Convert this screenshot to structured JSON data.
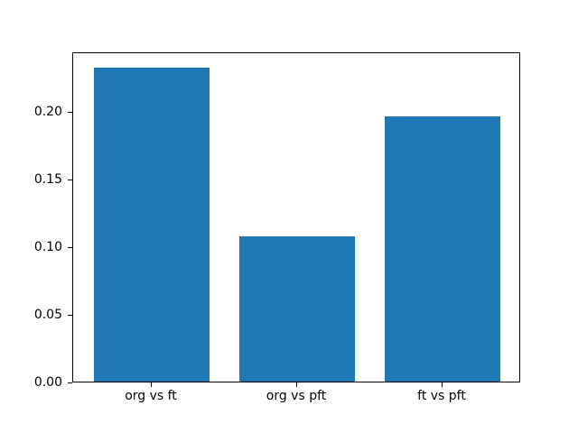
{
  "figure": {
    "background": "#ffffff"
  },
  "chart_data": {
    "type": "bar",
    "title": "",
    "xlabel": "",
    "ylabel": "",
    "categories": [
      "org vs ft",
      "org vs pft",
      "ft vs pft"
    ],
    "values": [
      0.232,
      0.107,
      0.196
    ],
    "bar_color": "#1f77b4",
    "bar_width": 0.8,
    "xlim": [
      -0.54,
      2.54
    ],
    "ylim": [
      0,
      0.2437
    ],
    "yticks": [
      0.0,
      0.05,
      0.1,
      0.15,
      0.2
    ],
    "ytick_labels": [
      "0.00",
      "0.05",
      "0.10",
      "0.15",
      "0.20"
    ],
    "grid": false,
    "legend_position": "none",
    "axis_color": "#000000",
    "text_color": "#000000"
  }
}
